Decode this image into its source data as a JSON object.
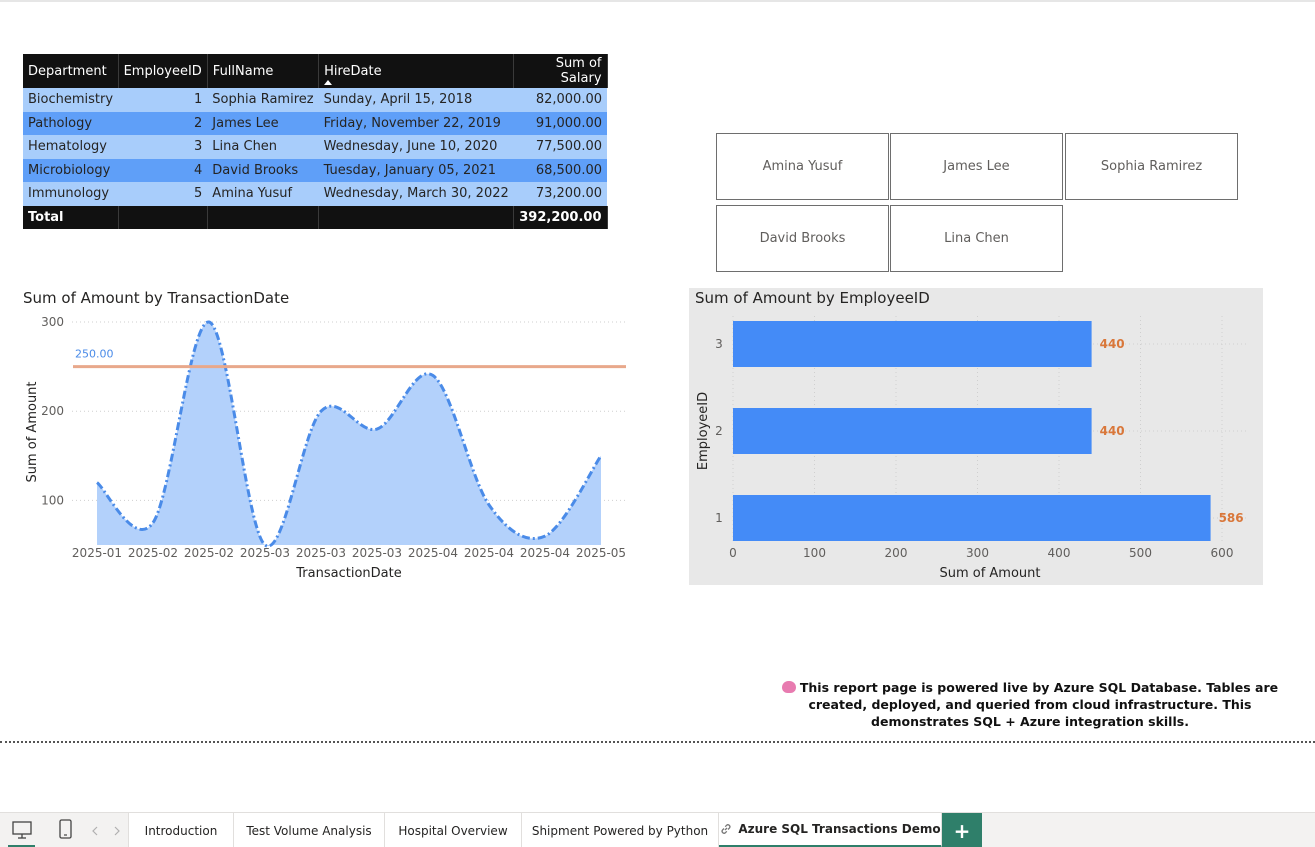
{
  "table": {
    "headers": [
      "Department",
      "EmployeeID",
      "FullName",
      "HireDate",
      "Sum of Salary"
    ],
    "rows": [
      [
        "Biochemistry",
        "1",
        "Sophia Ramirez",
        "Sunday, April 15, 2018",
        "82,000.00"
      ],
      [
        "Pathology",
        "2",
        "James Lee",
        "Friday, November 22, 2019",
        "91,000.00"
      ],
      [
        "Hematology",
        "3",
        "Lina Chen",
        "Wednesday, June 10, 2020",
        "77,500.00"
      ],
      [
        "Microbiology",
        "4",
        "David Brooks",
        "Tuesday, January 05, 2021",
        "68,500.00"
      ],
      [
        "Immunology",
        "5",
        "Amina Yusuf",
        "Wednesday, March 30, 2022",
        "73,200.00"
      ]
    ],
    "total_label": "Total",
    "total_value": "392,200.00",
    "sorted_column": "HireDate"
  },
  "slicer": {
    "items": [
      "Amina Yusuf",
      "James Lee",
      "Sophia Ramirez",
      "David Brooks",
      "Lina Chen"
    ]
  },
  "chart_data": [
    {
      "type": "area",
      "title": "Sum of Amount by TransactionDate",
      "xlabel": "TransactionDate",
      "ylabel": "Sum of Amount",
      "x_tick_labels": [
        "2025-01",
        "2025-02",
        "2025-02",
        "2025-03",
        "2025-03",
        "2025-03",
        "2025-04",
        "2025-04",
        "2025-04",
        "2025-05"
      ],
      "x": [
        0,
        1,
        2,
        3,
        4,
        5,
        6,
        7,
        8,
        9
      ],
      "values": [
        120,
        75,
        300,
        50,
        200,
        180,
        240,
        95,
        60,
        150
      ],
      "reference_line": {
        "value": 250,
        "label": "250.00",
        "color": "#e8a88b"
      },
      "y_ticks": [
        100,
        200,
        300
      ],
      "ylim": [
        50,
        300
      ],
      "grid": true,
      "fill_color": "#b3d1fb",
      "line_color": "#4a8be8"
    },
    {
      "type": "bar",
      "orientation": "horizontal",
      "title": "Sum of Amount by EmployeeID",
      "xlabel": "Sum of Amount",
      "ylabel": "EmployeeID",
      "categories": [
        "3",
        "2",
        "1"
      ],
      "values": [
        440,
        440,
        586
      ],
      "data_labels": [
        "440",
        "440",
        "586"
      ],
      "x_ticks": [
        0,
        100,
        200,
        300,
        400,
        500,
        600
      ],
      "xlim": [
        0,
        600
      ],
      "grid": true,
      "bar_color": "#448bf7",
      "label_color": "#d9773a"
    }
  ],
  "note": {
    "text": "This report page is powered live by Azure SQL Database. Tables are created, deployed, and queried from cloud infrastructure. This demonstrates SQL + Azure integration skills.",
    "icon": "brain-icon"
  },
  "tabs": {
    "items": [
      "Introduction",
      "Test Volume Analysis",
      "Hospital Overview",
      "Shipment Powered by Python",
      "Azure SQL Transactions Demo"
    ],
    "active": "Azure SQL Transactions Demo",
    "add_label": "+",
    "accent": "#2f7f6a"
  }
}
